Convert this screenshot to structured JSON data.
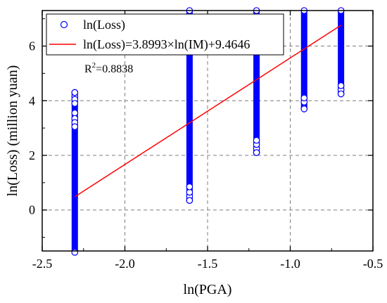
{
  "chart_data": {
    "type": "scatter",
    "xlabel": "ln(PGA)",
    "ylabel": "ln(Loss) (million yuan)",
    "xlim": [
      -2.5,
      -0.5
    ],
    "ylim": [
      -1.5,
      7.3
    ],
    "xticks": [
      -2.5,
      -2.0,
      -1.5,
      -1.0,
      -0.5
    ],
    "xtick_labels": [
      "-2.5",
      "-2.0",
      "-1.5",
      "-1.0",
      "-0.5"
    ],
    "yticks": [
      0,
      2,
      4,
      6
    ],
    "ytick_labels": [
      "0",
      "2",
      "4",
      "6"
    ],
    "grid": true,
    "legend_position": "top-left",
    "colors": {
      "scatter": "#0000ff",
      "fit": "#ff0000"
    },
    "series": [
      {
        "name": "ln(Loss)",
        "kind": "scatter",
        "columns": [
          {
            "x": -2.303,
            "y_min": -1.55,
            "y_max": 4.3,
            "outliers": [
              4.3,
              4.15,
              4.05,
              3.9,
              3.55,
              3.35,
              3.2,
              3.05
            ]
          },
          {
            "x": -1.609,
            "y_min": 0.35,
            "y_max": 7.3,
            "outliers": [
              0.35,
              0.5,
              0.65,
              0.85
            ]
          },
          {
            "x": -1.204,
            "y_min": 2.1,
            "y_max": 7.3,
            "outliers": [
              2.1,
              2.25,
              2.4,
              2.55
            ]
          },
          {
            "x": -0.916,
            "y_min": 3.7,
            "y_max": 7.3,
            "outliers": [
              3.7,
              3.95,
              4.1
            ]
          },
          {
            "x": -0.693,
            "y_min": 4.25,
            "y_max": 7.3,
            "outliers": [
              4.25,
              4.4,
              4.55
            ]
          }
        ]
      },
      {
        "name": "ln(Loss)=3.8993×ln(IM)+9.4646",
        "kind": "line",
        "slope": 3.8993,
        "intercept": 9.4646,
        "x_range": [
          -2.303,
          -0.693
        ]
      }
    ],
    "annotation": {
      "base": "R",
      "sup": "2",
      "rest": "=0.8838"
    }
  }
}
